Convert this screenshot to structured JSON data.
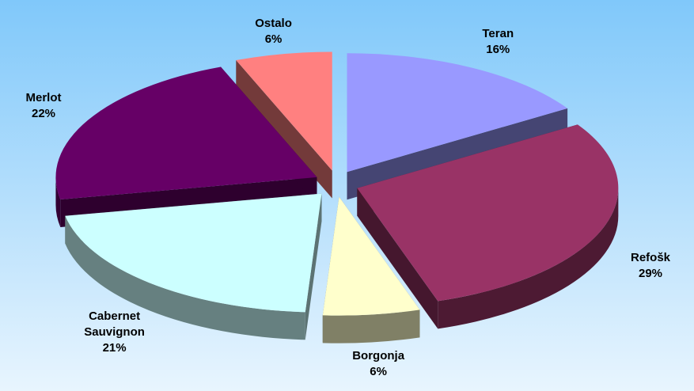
{
  "chart_data": {
    "type": "pie3d",
    "categories": [
      "Teran",
      "Refošk",
      "Borgonja",
      "Cabernet Sauvignon",
      "Merlot",
      "Ostalo"
    ],
    "values": [
      16,
      29,
      6,
      21,
      22,
      6
    ],
    "value_labels": [
      "16%",
      "29%",
      "6%",
      "21%",
      "22%",
      "6%"
    ],
    "colors": [
      "#9999ff",
      "#993366",
      "#ffffcc",
      "#ccffff",
      "#660066",
      "#ff8080"
    ]
  }
}
